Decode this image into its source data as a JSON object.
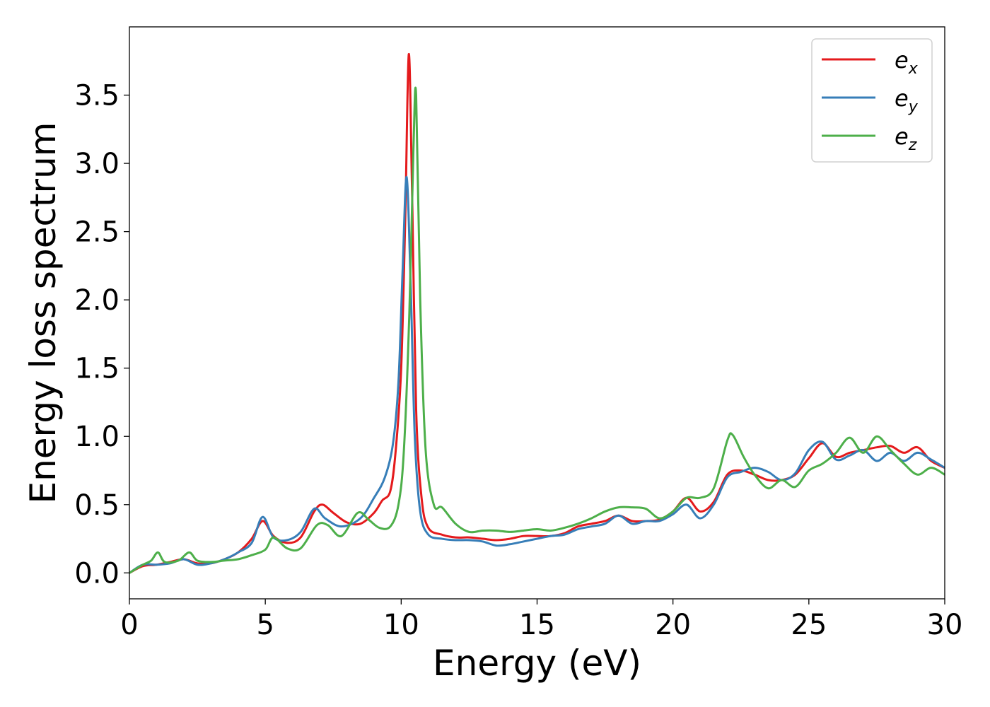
{
  "chart_data": {
    "type": "line",
    "xlabel": "Energy (eV)",
    "ylabel": "Energy loss spectrum",
    "xlim": [
      0,
      30
    ],
    "ylim": [
      -0.19,
      4.0
    ],
    "xticks": [
      0,
      5,
      10,
      15,
      20,
      25,
      30
    ],
    "xtick_labels": [
      "0",
      "5",
      "10",
      "15",
      "20",
      "25",
      "30"
    ],
    "yticks": [
      0.0,
      0.5,
      1.0,
      1.5,
      2.0,
      2.5,
      3.0,
      3.5
    ],
    "ytick_labels": [
      "0.0",
      "0.5",
      "1.0",
      "1.5",
      "2.0",
      "2.5",
      "3.0",
      "3.5"
    ],
    "grid": false,
    "legend_position": "top-right",
    "series": [
      {
        "name": "e",
        "subscript": "x",
        "color": "#e41a1c",
        "x": [
          0,
          0.5,
          1,
          1.5,
          2,
          2.5,
          3,
          3.5,
          4,
          4.5,
          4.9,
          5.3,
          5.8,
          6.3,
          6.8,
          7.1,
          7.5,
          8,
          8.5,
          9,
          9.3,
          9.6,
          9.8,
          10,
          10.15,
          10.28,
          10.4,
          10.55,
          10.75,
          11,
          11.5,
          12,
          12.5,
          13,
          13.5,
          14,
          14.5,
          15,
          15.5,
          16,
          16.5,
          17,
          17.5,
          18,
          18.5,
          19,
          19.5,
          20,
          20.5,
          21,
          21.5,
          22,
          22.5,
          23,
          23.5,
          24,
          24.5,
          25,
          25.5,
          26,
          26.5,
          27,
          27.5,
          28,
          28.5,
          29,
          29.5,
          30
        ],
        "y": [
          0.0,
          0.05,
          0.06,
          0.08,
          0.1,
          0.07,
          0.07,
          0.1,
          0.15,
          0.25,
          0.38,
          0.27,
          0.22,
          0.26,
          0.45,
          0.5,
          0.44,
          0.37,
          0.36,
          0.44,
          0.53,
          0.6,
          0.9,
          1.5,
          2.6,
          3.8,
          2.8,
          1.2,
          0.55,
          0.33,
          0.28,
          0.26,
          0.26,
          0.25,
          0.24,
          0.25,
          0.27,
          0.27,
          0.27,
          0.29,
          0.34,
          0.36,
          0.38,
          0.42,
          0.38,
          0.38,
          0.39,
          0.45,
          0.55,
          0.45,
          0.52,
          0.72,
          0.75,
          0.72,
          0.68,
          0.68,
          0.72,
          0.84,
          0.95,
          0.85,
          0.88,
          0.9,
          0.92,
          0.93,
          0.88,
          0.92,
          0.82,
          0.77
        ]
      },
      {
        "name": "e",
        "subscript": "y",
        "color": "#377eb8",
        "x": [
          0,
          0.5,
          1,
          1.5,
          2,
          2.5,
          3,
          3.5,
          4,
          4.5,
          4.9,
          5.3,
          5.8,
          6.3,
          6.8,
          7.2,
          7.8,
          8.5,
          9,
          9.4,
          9.7,
          9.9,
          10.05,
          10.2,
          10.35,
          10.5,
          10.7,
          11,
          11.5,
          12,
          12.5,
          13,
          13.5,
          14,
          14.5,
          15,
          15.5,
          16,
          16.5,
          17,
          17.5,
          18,
          18.5,
          19,
          19.5,
          20,
          20.5,
          21,
          21.5,
          22,
          22.5,
          23,
          23.5,
          24,
          24.5,
          25,
          25.5,
          26,
          26.5,
          27,
          27.5,
          28,
          28.5,
          29,
          29.5,
          30
        ],
        "y": [
          0.0,
          0.06,
          0.06,
          0.07,
          0.1,
          0.06,
          0.07,
          0.1,
          0.15,
          0.22,
          0.41,
          0.26,
          0.24,
          0.3,
          0.47,
          0.4,
          0.34,
          0.4,
          0.55,
          0.7,
          0.95,
          1.4,
          2.2,
          2.9,
          2.1,
          1.0,
          0.45,
          0.28,
          0.25,
          0.24,
          0.24,
          0.23,
          0.2,
          0.21,
          0.23,
          0.25,
          0.27,
          0.28,
          0.32,
          0.34,
          0.36,
          0.42,
          0.36,
          0.38,
          0.38,
          0.43,
          0.5,
          0.4,
          0.5,
          0.7,
          0.74,
          0.77,
          0.74,
          0.68,
          0.73,
          0.9,
          0.96,
          0.83,
          0.86,
          0.9,
          0.82,
          0.88,
          0.82,
          0.88,
          0.83,
          0.77
        ]
      },
      {
        "name": "e",
        "subscript": "z",
        "color": "#4daf4a",
        "x": [
          0,
          0.5,
          0.8,
          1.05,
          1.3,
          1.8,
          2.2,
          2.5,
          3,
          3.5,
          4,
          4.5,
          5,
          5.3,
          5.8,
          6.3,
          6.9,
          7.3,
          7.8,
          8.4,
          8.8,
          9.2,
          9.6,
          9.9,
          10.1,
          10.3,
          10.45,
          10.55,
          10.7,
          10.9,
          11.2,
          11.5,
          12,
          12.5,
          13,
          13.5,
          14,
          14.5,
          15,
          15.5,
          16,
          16.5,
          17,
          17.5,
          18,
          18.5,
          19,
          19.5,
          20,
          20.5,
          21,
          21.5,
          22,
          22.2,
          22.6,
          23,
          23.5,
          24,
          24.5,
          25,
          25.5,
          26,
          26.5,
          27,
          27.5,
          28,
          28.5,
          29,
          29.5,
          30
        ],
        "y": [
          0.0,
          0.06,
          0.09,
          0.15,
          0.08,
          0.09,
          0.15,
          0.09,
          0.08,
          0.09,
          0.1,
          0.13,
          0.17,
          0.26,
          0.18,
          0.18,
          0.35,
          0.35,
          0.27,
          0.44,
          0.39,
          0.33,
          0.34,
          0.5,
          0.9,
          1.9,
          3.1,
          3.5,
          2.0,
          0.9,
          0.5,
          0.48,
          0.36,
          0.3,
          0.31,
          0.31,
          0.3,
          0.31,
          0.32,
          0.31,
          0.33,
          0.36,
          0.4,
          0.45,
          0.48,
          0.48,
          0.47,
          0.4,
          0.45,
          0.55,
          0.55,
          0.62,
          0.97,
          1.01,
          0.85,
          0.72,
          0.62,
          0.68,
          0.63,
          0.75,
          0.8,
          0.88,
          0.99,
          0.88,
          1.0,
          0.9,
          0.8,
          0.72,
          0.77,
          0.72
        ]
      }
    ]
  }
}
